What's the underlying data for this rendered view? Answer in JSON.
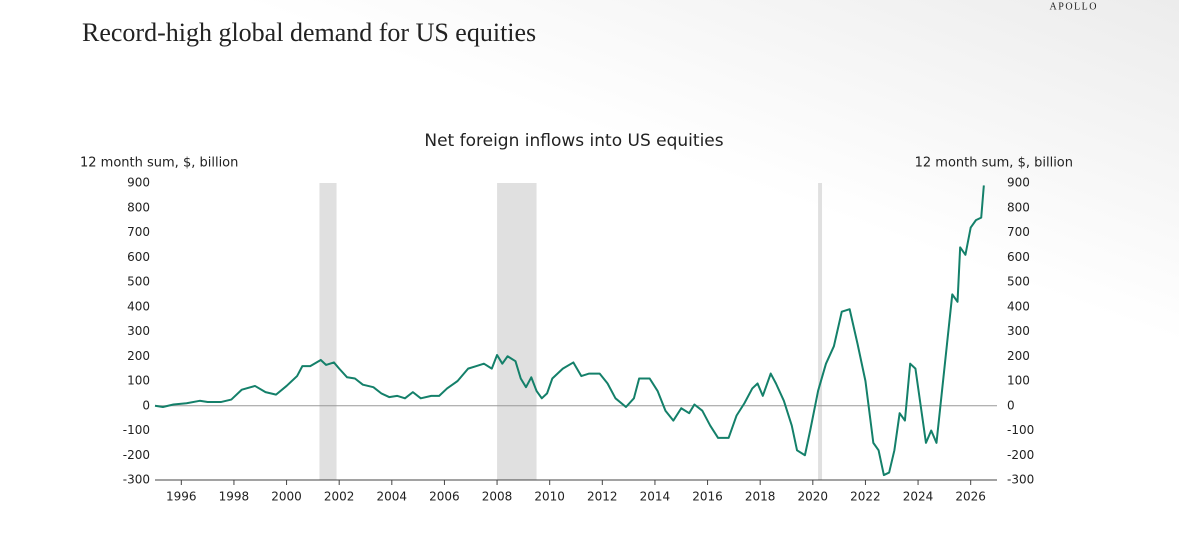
{
  "brand": "APOLLO",
  "chart_data": {
    "type": "line",
    "title": "Record-high global demand for US equities",
    "subtitle": "Net foreign inflows into US equities",
    "y_label": "12 month sum, $, billion",
    "y2_label": "12 month sum, $, billion",
    "xlim": [
      1995,
      2027
    ],
    "xticks": [
      1996,
      1998,
      2000,
      2002,
      2004,
      2006,
      2008,
      2010,
      2012,
      2014,
      2016,
      2018,
      2020,
      2022,
      2024,
      2026
    ],
    "ylim": [
      -300,
      900
    ],
    "yticks": [
      -300,
      -200,
      -100,
      0,
      100,
      200,
      300,
      400,
      500,
      600,
      700,
      800,
      900
    ],
    "y2lim": [
      -300,
      900
    ],
    "y2ticks": [
      -300,
      -200,
      -100,
      0,
      100,
      200,
      300,
      400,
      500,
      600,
      700,
      800,
      900
    ],
    "shaded_periods": [
      [
        2001.25,
        2001.9
      ],
      [
        2008.0,
        2009.5
      ],
      [
        2020.2,
        2020.35
      ]
    ],
    "shade_color": "#e0e0e0",
    "zero_line": true,
    "x": [
      1995.0,
      1995.3,
      1995.7,
      1996.2,
      1996.7,
      1997.0,
      1997.5,
      1997.9,
      1998.3,
      1998.8,
      1999.2,
      1999.6,
      2000.0,
      2000.4,
      2000.6,
      2000.9,
      2001.3,
      2001.5,
      2001.8,
      2002.0,
      2002.3,
      2002.6,
      2002.9,
      2003.3,
      2003.6,
      2003.9,
      2004.2,
      2004.5,
      2004.8,
      2005.1,
      2005.5,
      2005.8,
      2006.1,
      2006.5,
      2006.9,
      2007.2,
      2007.5,
      2007.8,
      2008.0,
      2008.2,
      2008.4,
      2008.7,
      2008.9,
      2009.1,
      2009.3,
      2009.5,
      2009.7,
      2009.9,
      2010.1,
      2010.5,
      2010.9,
      2011.2,
      2011.5,
      2011.9,
      2012.2,
      2012.5,
      2012.9,
      2013.2,
      2013.4,
      2013.8,
      2014.1,
      2014.4,
      2014.7,
      2015.0,
      2015.3,
      2015.5,
      2015.8,
      2016.1,
      2016.4,
      2016.8,
      2017.1,
      2017.4,
      2017.7,
      2017.9,
      2018.1,
      2018.4,
      2018.6,
      2018.9,
      2019.2,
      2019.4,
      2019.7,
      2019.9,
      2020.2,
      2020.5,
      2020.8,
      2021.1,
      2021.4,
      2021.7,
      2022.0,
      2022.3,
      2022.5,
      2022.7,
      2022.9,
      2023.1,
      2023.3,
      2023.5,
      2023.7,
      2023.9,
      2024.1,
      2024.3,
      2024.5,
      2024.7,
      2024.9,
      2025.1,
      2025.3,
      2025.5,
      2025.6,
      2025.8,
      2026.0,
      2026.2,
      2026.4,
      2026.5
    ],
    "series": [
      {
        "name": "Net foreign inflows",
        "color": "#14806a",
        "values": [
          0,
          -5,
          5,
          10,
          20,
          15,
          15,
          25,
          65,
          80,
          55,
          45,
          80,
          120,
          160,
          160,
          185,
          165,
          175,
          150,
          115,
          110,
          85,
          75,
          50,
          35,
          40,
          30,
          55,
          30,
          40,
          40,
          70,
          100,
          150,
          160,
          170,
          150,
          205,
          170,
          200,
          180,
          110,
          75,
          115,
          60,
          30,
          50,
          110,
          150,
          175,
          120,
          130,
          130,
          90,
          30,
          -5,
          30,
          110,
          110,
          60,
          -20,
          -60,
          -10,
          -30,
          5,
          -20,
          -80,
          -130,
          -130,
          -40,
          10,
          70,
          90,
          40,
          130,
          90,
          20,
          -80,
          -180,
          -200,
          -100,
          60,
          170,
          240,
          380,
          390,
          250,
          100,
          -150,
          -180,
          -280,
          -270,
          -180,
          -30,
          -60,
          170,
          150,
          0,
          -150,
          -100,
          -150,
          50,
          250,
          450,
          420,
          640,
          610,
          720,
          750,
          760,
          890
        ]
      }
    ]
  }
}
